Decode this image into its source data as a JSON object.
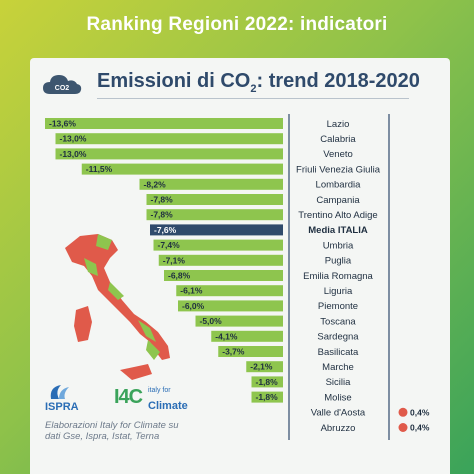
{
  "header": {
    "title": "Ranking Regioni 2022: indicatori"
  },
  "chart_header": {
    "title_main": "Emissioni di CO",
    "title_sub": "2",
    "title_tail": ": trend 2018-2020",
    "icon_text": "CO2"
  },
  "colors": {
    "negative": "#8ec54e",
    "average": "#2f4a6b",
    "positive": "#e05a4a"
  },
  "chart_data": {
    "type": "bar",
    "orientation": "horizontal",
    "title": "Emissioni di CO2: trend 2018-2020",
    "categories": [
      "Lazio",
      "Calabria",
      "Veneto",
      "Friuli Venezia Giulia",
      "Lombardia",
      "Campania",
      "Trentino Alto Adige",
      "Media ITALIA",
      "Umbria",
      "Puglia",
      "Emilia Romagna",
      "Liguria",
      "Piemonte",
      "Toscana",
      "Sardegna",
      "Basilicata",
      "Marche",
      "Sicilia",
      "Molise",
      "Valle d'Aosta",
      "Abruzzo"
    ],
    "values": [
      -13.6,
      -13.0,
      -13.0,
      -11.5,
      -8.2,
      -7.8,
      -7.8,
      -7.6,
      -7.4,
      -7.1,
      -6.8,
      -6.1,
      -6.0,
      -5.0,
      -4.1,
      -3.7,
      -2.1,
      -1.8,
      -1.8,
      0.4,
      0.4
    ],
    "labels": [
      "-13,6%",
      "-13,0%",
      "-13,0%",
      "-11,5%",
      "-8,2%",
      "-7,8%",
      "-7,8%",
      "-7,6%",
      "-7,4%",
      "-7,1%",
      "-6,8%",
      "-6,1%",
      "-6,0%",
      "-5,0%",
      "-4,1%",
      "-3,7%",
      "-2,1%",
      "-1,8%",
      "-1,8%",
      "0,4%",
      "0,4%"
    ],
    "highlight": "Media ITALIA"
  },
  "credits": {
    "line1": "Elaborazioni Italy for Climate su",
    "line2": "dati Gse, Ispra, Istat, Terna"
  },
  "logos": {
    "ispra": "ISPRA",
    "i4c_mark": "I4C",
    "i4c_small1": "italy for",
    "i4c_big": "Climate"
  }
}
